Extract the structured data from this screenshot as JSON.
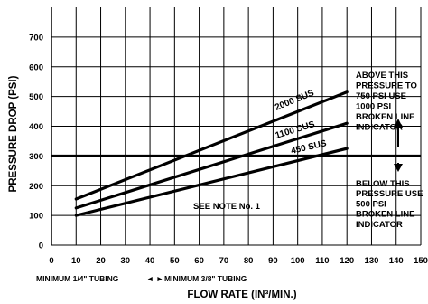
{
  "chart_data": {
    "type": "line",
    "xlabel": "FLOW RATE (IN³/MIN.)",
    "ylabel": "PRESSURE DROP (PSI)",
    "xlim": [
      0,
      150
    ],
    "ylim": [
      0,
      800
    ],
    "x_ticks": [
      "0",
      "10",
      "20",
      "30",
      "40",
      "50",
      "60",
      "70",
      "80",
      "90",
      "100",
      "110",
      "120",
      "130",
      "140",
      "150"
    ],
    "y_ticks": [
      "0",
      "100",
      "200",
      "300",
      "400",
      "500",
      "600",
      "700"
    ],
    "grid": true,
    "series": [
      {
        "name": "2000 SUS",
        "x": [
          10,
          120
        ],
        "y": [
          155,
          515
        ]
      },
      {
        "name": "1100 SUS",
        "x": [
          10,
          120
        ],
        "y": [
          125,
          410
        ]
      },
      {
        "name": "450 SUS",
        "x": [
          10,
          120
        ],
        "y": [
          100,
          325
        ]
      }
    ],
    "reference_line": {
      "y": 300
    },
    "annotations": {
      "above": [
        "ABOVE THIS",
        "PRESSURE TO",
        "750 PSI USE",
        "1000 PSI",
        "BROKEN LINE",
        "INDICATOR"
      ],
      "below": [
        "BELOW THIS",
        "PRESSURE USE",
        "500 PSI",
        "BROKEN LINE",
        "INDICATOR"
      ],
      "note": "SEE NOTE No. 1",
      "tubing_left": "MINIMUM 1/4\" TUBING",
      "tubing_right": "MINIMUM 3/8\" TUBING",
      "tubing_arrows": "◄ ►"
    }
  }
}
